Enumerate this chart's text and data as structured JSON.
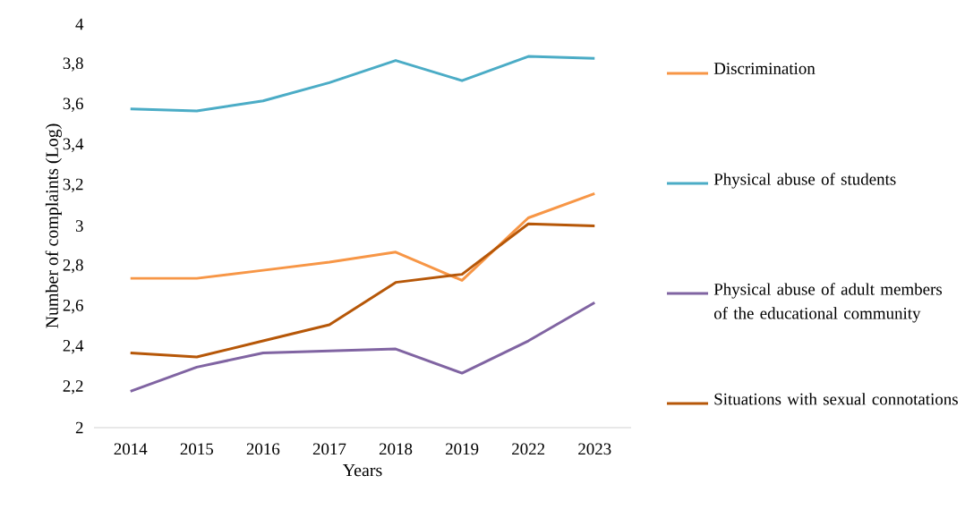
{
  "chart_data": {
    "type": "line",
    "xlabel": "Years",
    "ylabel": "Number of complaints (Log)",
    "categories": [
      "2014",
      "2015",
      "2016",
      "2017",
      "2018",
      "2019",
      "2022",
      "2023"
    ],
    "ylim": [
      2,
      4
    ],
    "yticks": [
      2,
      {
        "value": 2.2,
        "label": "2,2"
      },
      {
        "value": 2.4,
        "label": "2,4"
      },
      {
        "value": 2.6,
        "label": "2,6"
      },
      {
        "value": 2.8,
        "label": "2,8"
      },
      3,
      {
        "value": 3.2,
        "label": "3,2"
      },
      {
        "value": 3.4,
        "label": "3,4"
      },
      {
        "value": 3.6,
        "label": "3,6"
      },
      {
        "value": 3.8,
        "label": "3,8"
      },
      4
    ],
    "legend": "right",
    "grid": false,
    "marker": "none",
    "line_style": "solid",
    "series": [
      {
        "name": "Discrimination",
        "color": "#f79646",
        "values": [
          2.74,
          2.74,
          2.78,
          2.82,
          2.87,
          2.73,
          3.04,
          3.16
        ]
      },
      {
        "name": "Physical abuse of students",
        "color": "#4bacc6",
        "values": [
          3.58,
          3.57,
          3.62,
          3.71,
          3.82,
          3.72,
          3.84,
          3.83
        ]
      },
      {
        "name": "Physical abuse of adult members of the educational community",
        "color": "#8064a2",
        "values": [
          2.18,
          2.3,
          2.37,
          2.38,
          2.39,
          2.27,
          2.43,
          2.62
        ]
      },
      {
        "name": "Situations with sexual connotations",
        "color": "#b65708",
        "values": [
          2.37,
          2.35,
          2.43,
          2.51,
          2.72,
          2.76,
          3.01,
          3.0
        ]
      }
    ]
  }
}
